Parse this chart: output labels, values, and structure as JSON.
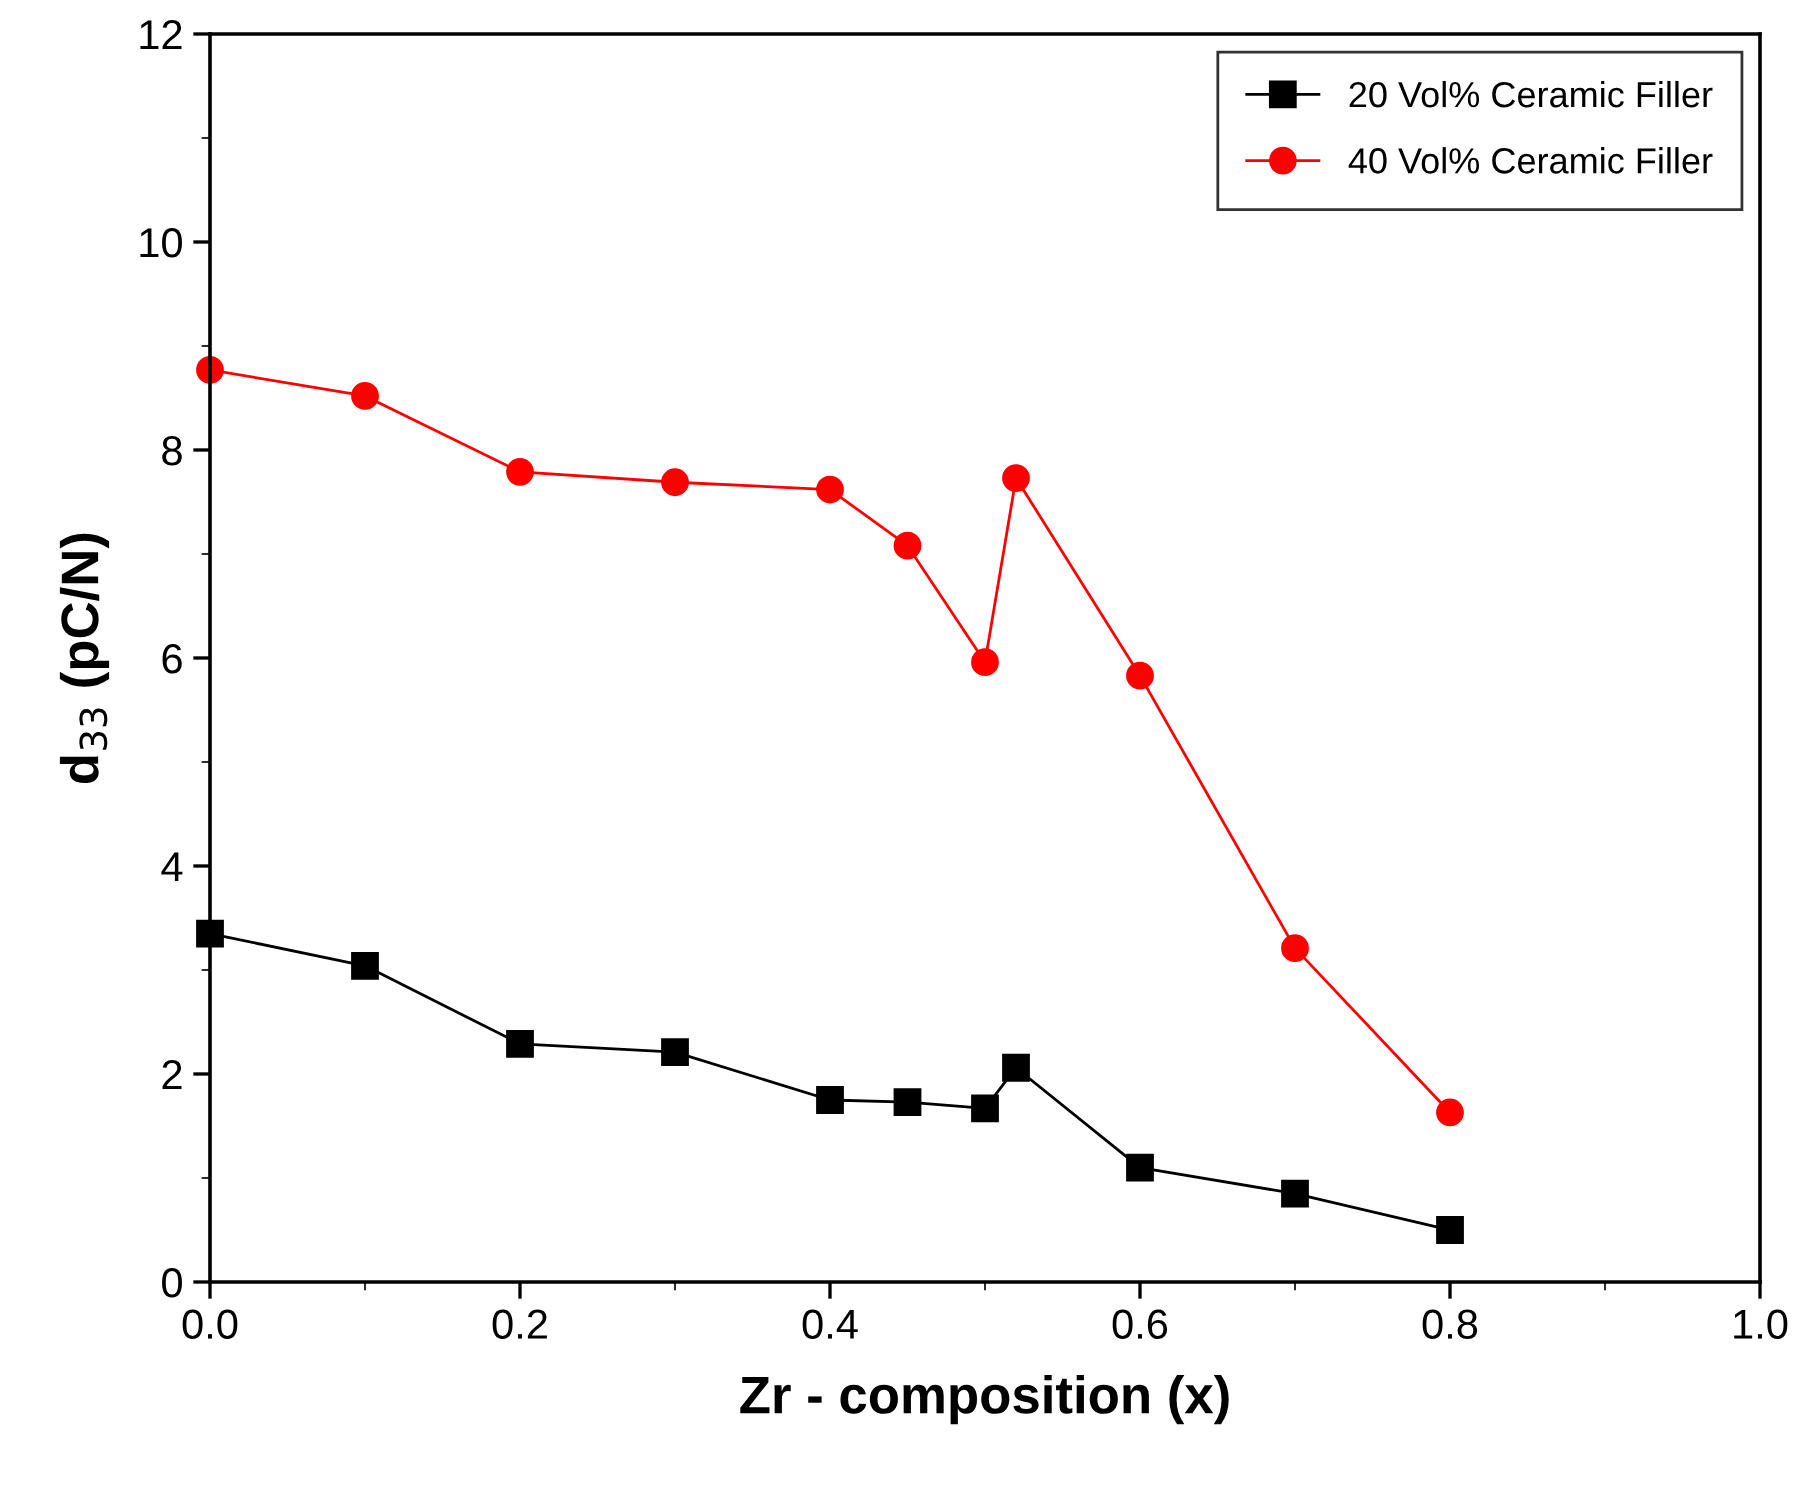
{
  "chart_data": {
    "type": "line",
    "xlabel": "Zr - composition (x)",
    "ylabel": "d$_{33}$ (pC/N)",
    "xlim": [
      0,
      1.0
    ],
    "xticks": [
      {
        "value": 0,
        "label": "0.0"
      },
      0.2,
      0.4,
      0.6,
      0.8,
      {
        "value": 1.0,
        "label": "1.0"
      }
    ],
    "ylim": [
      0,
      12
    ],
    "yticks": [
      0,
      2,
      4,
      6,
      8,
      10,
      12
    ],
    "grid": false,
    "legend": "top right",
    "line_style": "solid",
    "series": [
      {
        "name": "20 Vol% Ceramic Filler",
        "color": "#000000",
        "marker": "square",
        "x": [
          0,
          0.1,
          0.2,
          0.3,
          0.4,
          0.45,
          0.5,
          0.52,
          0.6,
          0.7,
          0.8
        ],
        "values": [
          3.35,
          3.04,
          2.29,
          2.21,
          1.75,
          1.73,
          1.67,
          2.06,
          1.1,
          0.85,
          0.5
        ]
      },
      {
        "name": "40 Vol% Ceramic Filler",
        "color": "#ff0000",
        "marker": "circle",
        "x": [
          0,
          0.1,
          0.2,
          0.3,
          0.4,
          0.45,
          0.5,
          0.52,
          0.6,
          0.7,
          0.8
        ],
        "values": [
          8.77,
          8.52,
          7.79,
          7.69,
          7.62,
          7.08,
          5.96,
          7.73,
          5.83,
          3.21,
          1.63
        ]
      }
    ]
  }
}
